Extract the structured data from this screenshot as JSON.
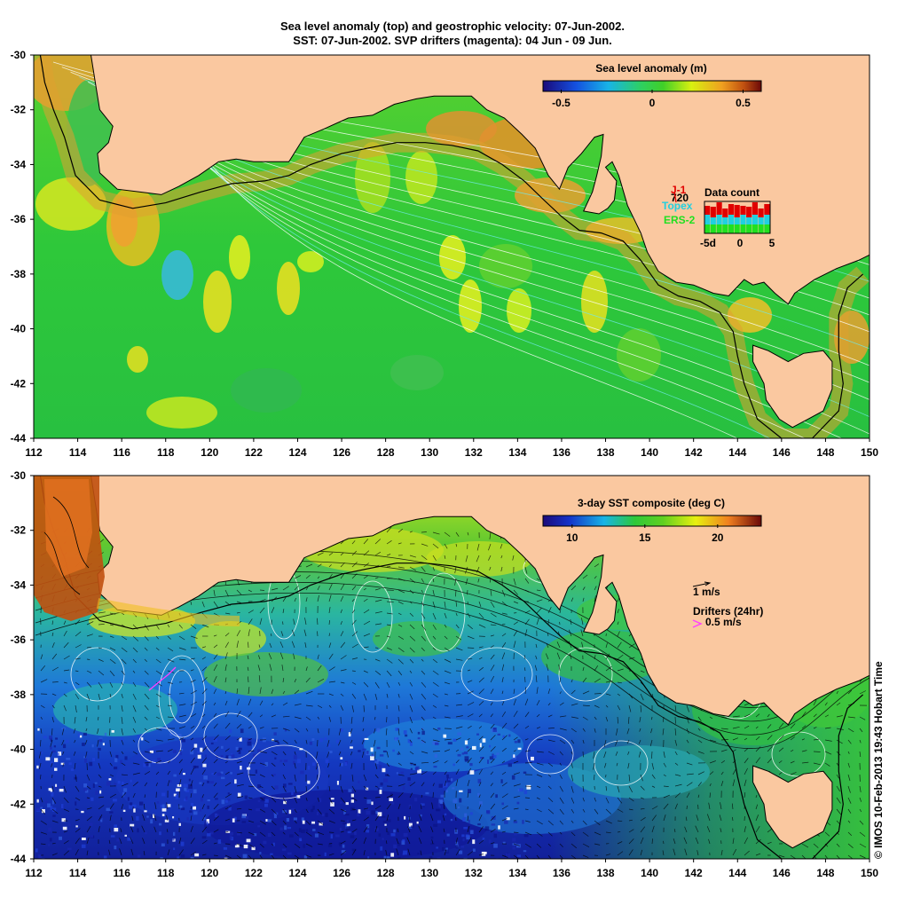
{
  "title": {
    "line1": "Sea level anomaly (top) and geostrophic velocity: 07-Jun-2002.",
    "line2": "SST: 07-Jun-2002. SVP drifters (magenta): 04 Jun - 09 Jun."
  },
  "lon_ticks": [
    "112",
    "114",
    "116",
    "118",
    "120",
    "122",
    "124",
    "126",
    "128",
    "130",
    "132",
    "134",
    "136",
    "138",
    "140",
    "142",
    "144",
    "146",
    "148",
    "150"
  ],
  "lat_ticks": [
    "-30",
    "-32",
    "-34",
    "-36",
    "-38",
    "-40",
    "-42",
    "-44"
  ],
  "top_panel": {
    "colorbar_title": "Sea level anomaly (m)",
    "colorbar_ticks": [
      "-0.5",
      "0",
      "0.5"
    ],
    "colorbar_range": [
      -0.6,
      0.6
    ],
    "inset": {
      "title": "Data count",
      "count": "720",
      "j1": "J-1",
      "topex": "Topex",
      "ers2": "ERS-2",
      "x_ticks": [
        "-5d",
        "0",
        "5"
      ],
      "day_offsets": [
        -5,
        -4,
        -3,
        -2,
        -1,
        0,
        1,
        2,
        3,
        4,
        5
      ],
      "colors": {
        "j1": "#e00000",
        "topex": "#20d0e0",
        "ers2": "#20e020"
      }
    }
  },
  "bottom_panel": {
    "colorbar_title": "3-day SST composite (deg C)",
    "colorbar_ticks": [
      "10",
      "15",
      "20"
    ],
    "colorbar_range": [
      8,
      23
    ],
    "scale_arrow_label": "1 m/s",
    "drifters_label": "Drifters (24hr)",
    "drifter_speed_label": "0.5 m/s",
    "drifter_color": "#ff40ff"
  },
  "colors": {
    "land": "#fac8a0",
    "ocean_mid": "#2ec83a"
  },
  "credit": "© IMOS 10-Feb-2013 19:43 Hobart Time"
}
